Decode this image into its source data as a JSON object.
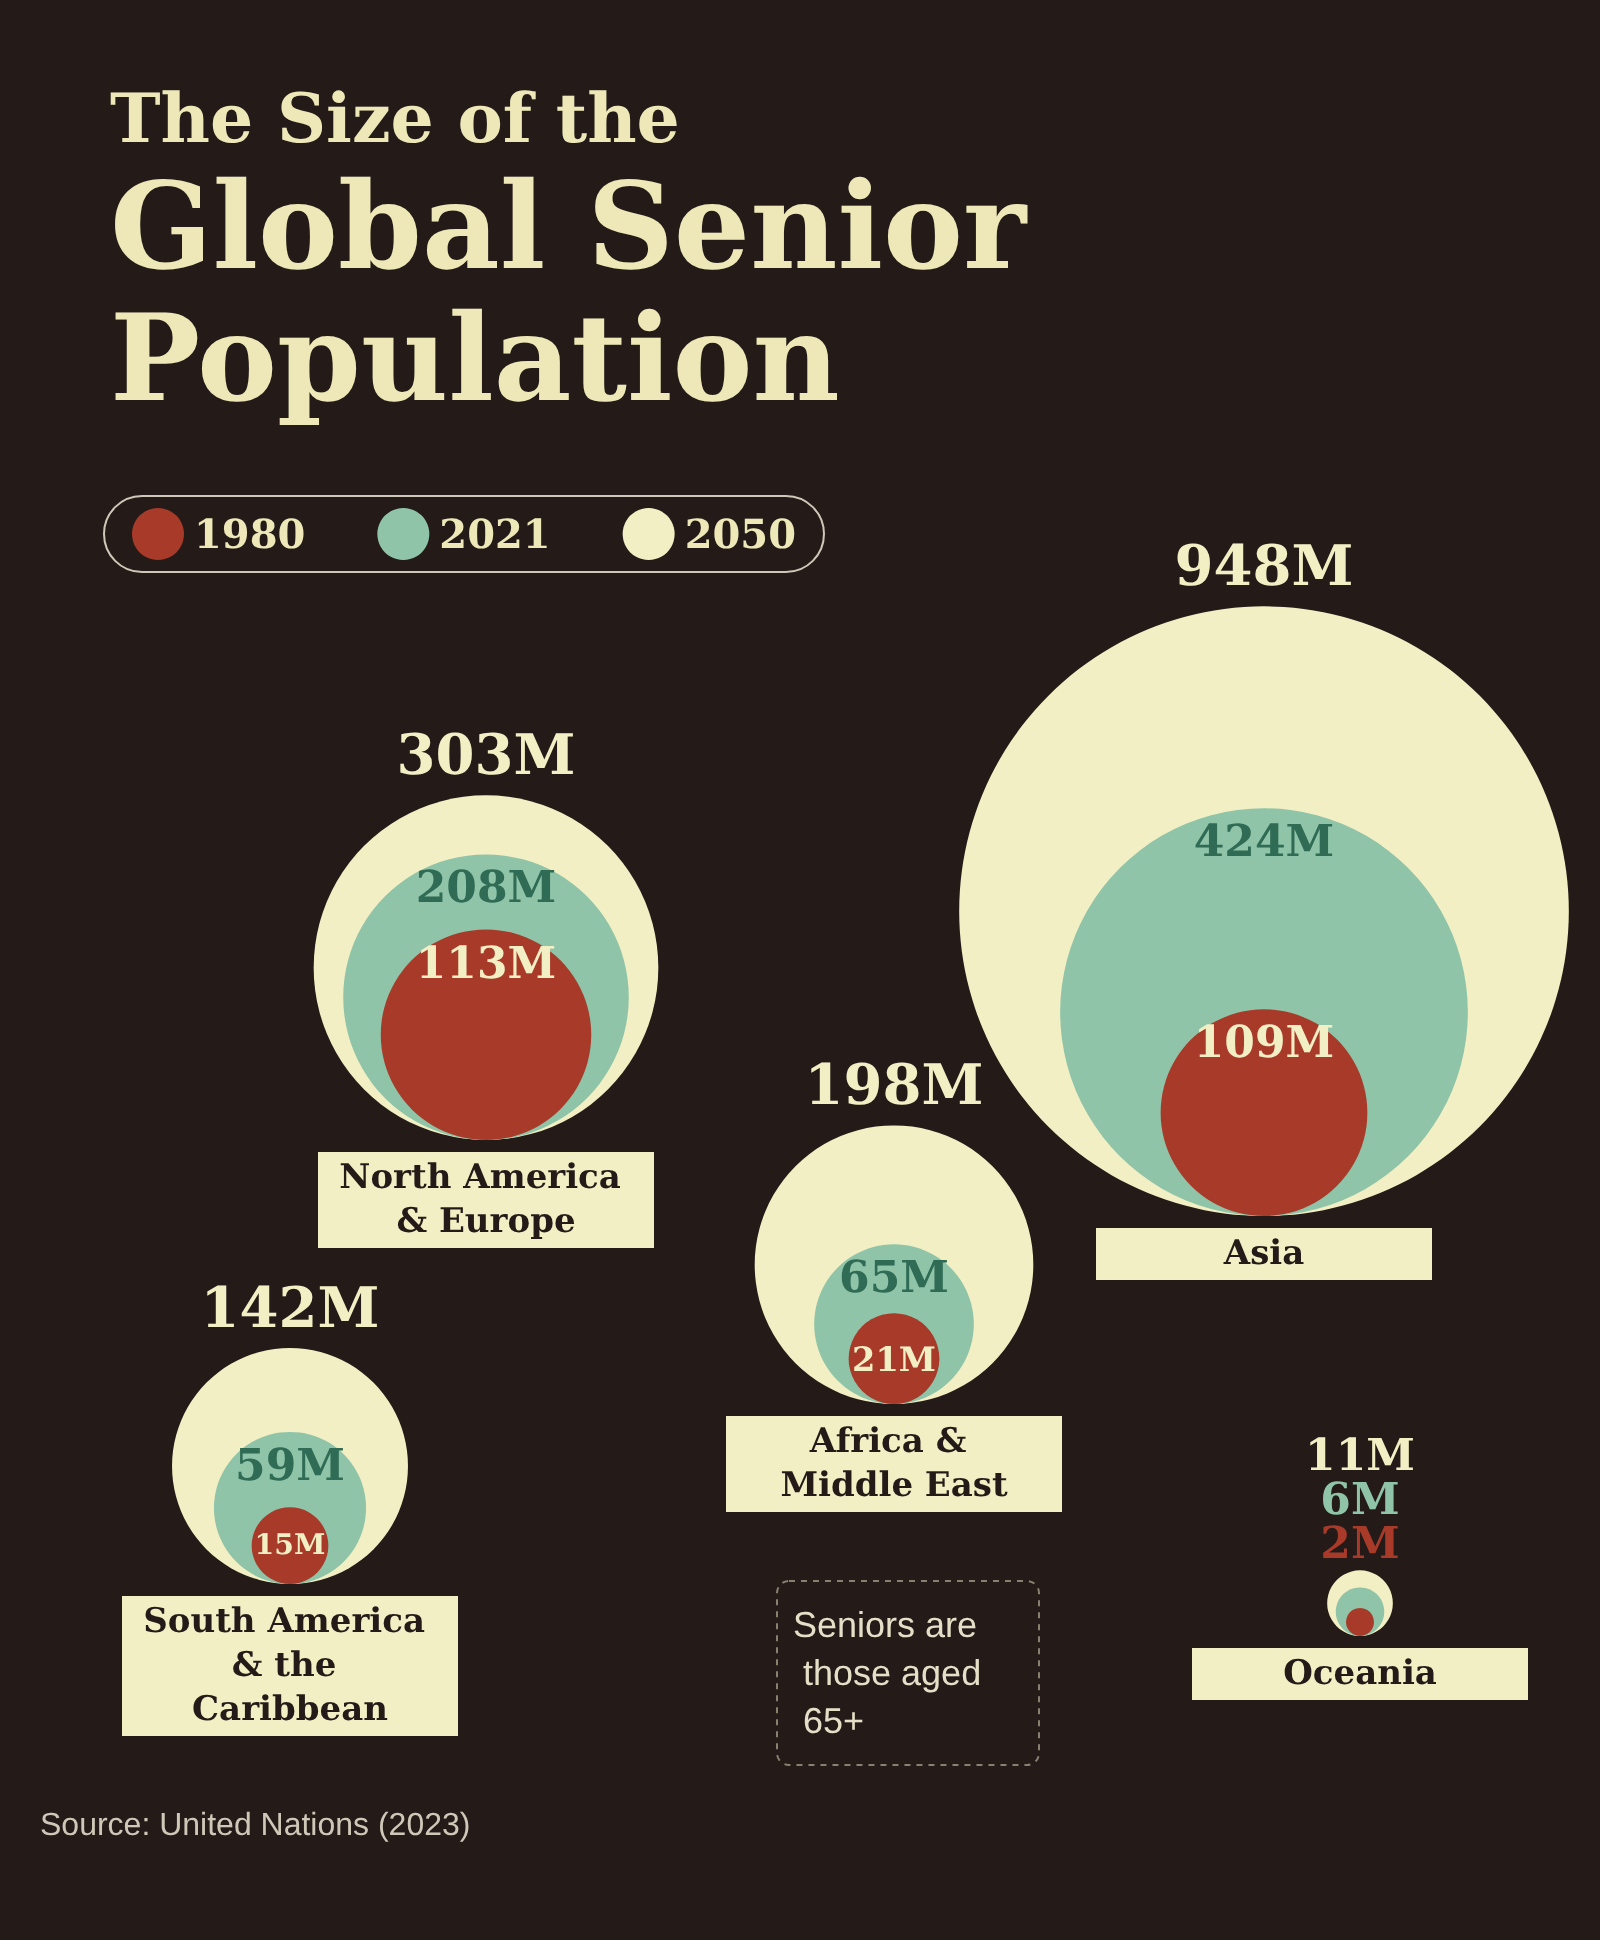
{
  "chart_data": {
    "type": "other",
    "title": "The Size of the",
    "subtitle": "Global Senior Population",
    "categories": [
      "North America & Europe",
      "South America & the Caribbean",
      "Africa & Middle East",
      "Asia",
      "Oceania"
    ],
    "series": [
      {
        "name": "1980",
        "color": "#a83a2a",
        "values": [
          113,
          15,
          21,
          109,
          2
        ],
        "value_labels": [
          "113M",
          "15M",
          "21M",
          "109M",
          "2M"
        ]
      },
      {
        "name": "2021",
        "color": "#8fc4a8",
        "values": [
          208,
          59,
          65,
          424,
          6
        ],
        "value_labels": [
          "208M",
          "59M",
          "65M",
          "424M",
          "6M"
        ]
      },
      {
        "name": "2050",
        "color": "#f3efc4",
        "values": [
          303,
          142,
          198,
          948,
          11
        ],
        "value_labels": [
          "303M",
          "142M",
          "198M",
          "948M",
          "11M"
        ]
      }
    ],
    "legend": "top left",
    "annotations": [
      "Seniors are those aged 65+",
      "Source: United Nations (2023)"
    ]
  }
}
